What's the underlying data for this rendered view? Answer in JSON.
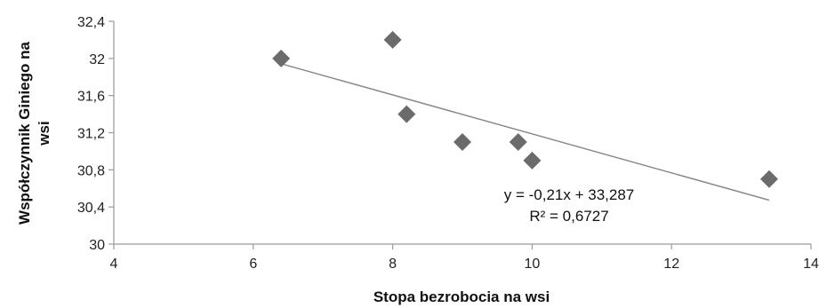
{
  "chart_data": {
    "type": "scatter",
    "xlabel": "Stopa bezrobocia na wsi",
    "ylabel_lines": [
      "Współczynnik Giniego na",
      "wsi"
    ],
    "xlim": [
      4,
      14
    ],
    "ylim": [
      30,
      32.4
    ],
    "xticks": [
      4,
      6,
      8,
      10,
      12,
      14
    ],
    "xtick_labels": [
      "4",
      "6",
      "8",
      "10",
      "12",
      "14"
    ],
    "yticks": [
      30,
      30.4,
      30.8,
      31.2,
      31.6,
      32,
      32.4
    ],
    "ytick_labels": [
      "30",
      "30,4",
      "30,8",
      "31,2",
      "31,6",
      "32",
      "32,4"
    ],
    "grid": false,
    "legend": false,
    "points": [
      {
        "x": 6.4,
        "y": 32.0
      },
      {
        "x": 8.0,
        "y": 32.2
      },
      {
        "x": 8.2,
        "y": 31.4
      },
      {
        "x": 9.0,
        "y": 31.1
      },
      {
        "x": 9.8,
        "y": 31.1
      },
      {
        "x": 10.0,
        "y": 30.9
      },
      {
        "x": 13.4,
        "y": 30.7
      }
    ],
    "trendline": {
      "type": "linear",
      "slope": -0.21,
      "intercept": 33.287,
      "x_range": [
        6.4,
        13.4
      ],
      "equation_text": "y = -0,21x + 33,287",
      "r2_text": "R² = 0,6727"
    },
    "marker_color": "#6b6b6b",
    "line_color": "#8a8a8a",
    "axis_color": "#9a9a9a"
  }
}
